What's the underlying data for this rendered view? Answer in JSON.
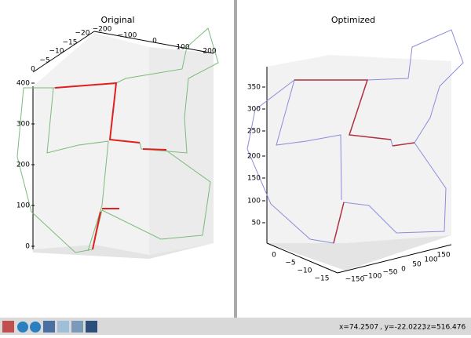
{
  "panels": [
    {
      "title": "Original",
      "z_ticks": [
        "0",
        "100",
        "200",
        "300",
        "400"
      ],
      "x_ticks": [
        "−200",
        "−100",
        "0",
        "100",
        "200"
      ],
      "y_ticks": [
        "−20",
        "−15",
        "−10",
        "−5",
        "0"
      ]
    },
    {
      "title": "Optimized",
      "z_ticks": [
        "50",
        "100",
        "150",
        "200",
        "250",
        "300",
        "350"
      ],
      "x_ticks": [
        "−150",
        "−100",
        "−50",
        "0",
        "50",
        "100",
        "150"
      ],
      "y_ticks": [
        "0",
        "−5",
        "−10",
        "−15"
      ]
    }
  ],
  "status": {
    "x": "x=74.2507",
    "y": ", y=-22.0223",
    "z": ", z=516.476"
  }
}
